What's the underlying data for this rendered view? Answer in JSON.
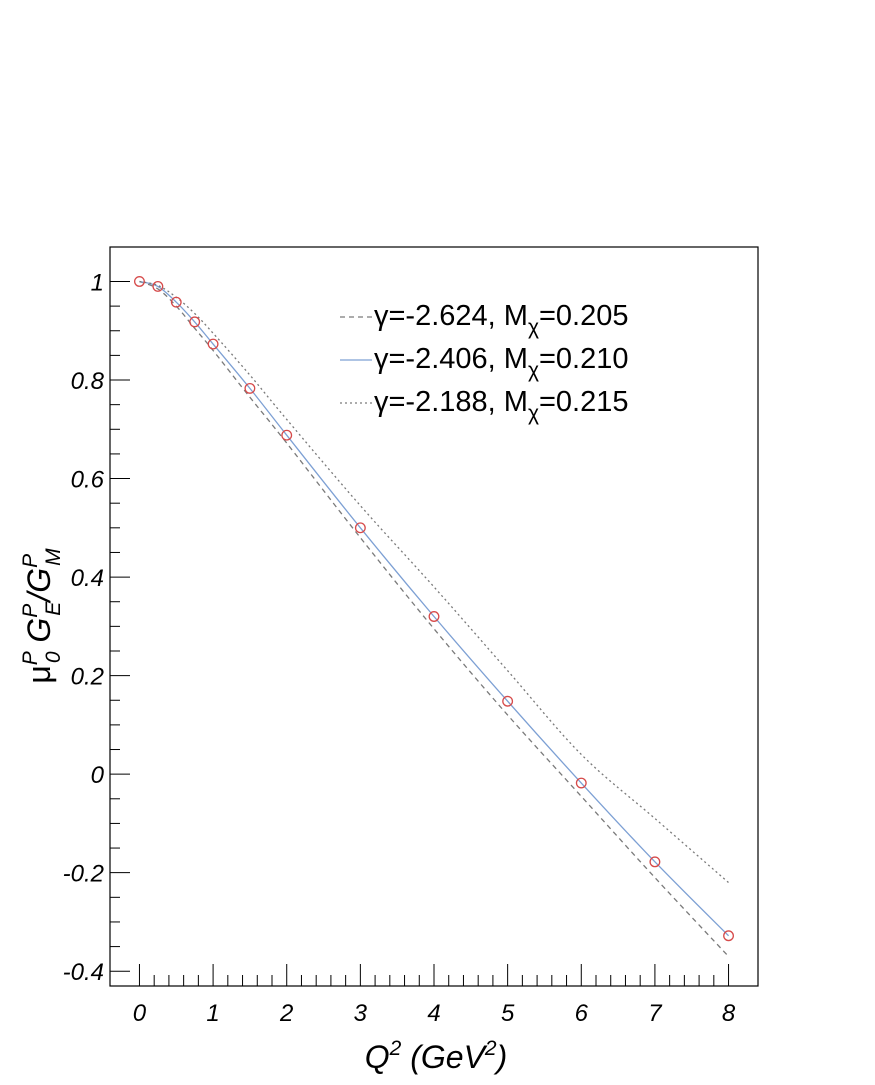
{
  "chart_data": {
    "type": "line",
    "xlabel": {
      "base": "Q",
      "sup": "2",
      "mid": " (GeV",
      "sup2": "2",
      "tail": ")"
    },
    "ylabel": {
      "mu": "μ",
      "mu_sup": "P",
      "mu_sub": "0",
      "g1": " G",
      "g1_sup": "P",
      "g1_sub": "E",
      "slash": "/G",
      "g2_sup": "P",
      "g2_sub": "M"
    },
    "xlim": [
      -0.4,
      8.4
    ],
    "ylim": [
      -0.43,
      1.07
    ],
    "x_ticks": [
      0,
      1,
      2,
      3,
      4,
      5,
      6,
      7,
      8
    ],
    "x_tick_labels": [
      "0",
      "1",
      "2",
      "3",
      "4",
      "5",
      "6",
      "7",
      "8"
    ],
    "y_ticks": [
      1,
      0.8,
      0.6,
      0.4,
      0.2,
      0,
      -0.2,
      -0.4
    ],
    "y_tick_labels": [
      "1",
      "0.8",
      "0.6",
      "0.4",
      "0.2",
      "0",
      "-0.2",
      "-0.4"
    ],
    "legend_position": "top-right",
    "grid": false,
    "series": [
      {
        "name": "γ=-2.624, M",
        "name_sub": "χ",
        "name_tail": "=0.205",
        "style": "dashed",
        "color": "#7a7a7a",
        "x": [
          0,
          0.25,
          0.5,
          0.75,
          1,
          1.5,
          2,
          3,
          4,
          5,
          6,
          7,
          8
        ],
        "y": [
          1.0,
          0.985,
          0.95,
          0.905,
          0.86,
          0.765,
          0.672,
          0.48,
          0.295,
          0.12,
          -0.045,
          -0.21,
          -0.37
        ]
      },
      {
        "name": "γ=-2.406, M",
        "name_sub": "χ",
        "name_tail": "=0.210",
        "style": "solid",
        "color": "#7da0d4",
        "x": [
          0,
          0.25,
          0.5,
          0.75,
          1,
          1.5,
          2,
          3,
          4,
          5,
          6,
          7,
          8
        ],
        "y": [
          1.0,
          0.99,
          0.958,
          0.918,
          0.873,
          0.783,
          0.688,
          0.5,
          0.32,
          0.148,
          -0.018,
          -0.178,
          -0.328
        ]
      },
      {
        "name": "γ=-2.188, M",
        "name_sub": "χ",
        "name_tail": "=0.215",
        "style": "dotted",
        "color": "#7a7a7a",
        "x": [
          0,
          0.25,
          0.5,
          0.75,
          1,
          1.5,
          2,
          3,
          4,
          5,
          6,
          7,
          8
        ],
        "y": [
          1.0,
          0.992,
          0.968,
          0.935,
          0.895,
          0.81,
          0.72,
          0.545,
          0.38,
          0.21,
          0.04,
          -0.09,
          -0.22
        ]
      }
    ],
    "points": {
      "color": "#d64a4a",
      "x": [
        0,
        0.25,
        0.5,
        0.75,
        1,
        1.5,
        2,
        3,
        4,
        5,
        6,
        7,
        8
      ],
      "y": [
        1.0,
        0.99,
        0.958,
        0.918,
        0.873,
        0.783,
        0.688,
        0.5,
        0.32,
        0.148,
        -0.018,
        -0.178,
        -0.328
      ]
    }
  }
}
